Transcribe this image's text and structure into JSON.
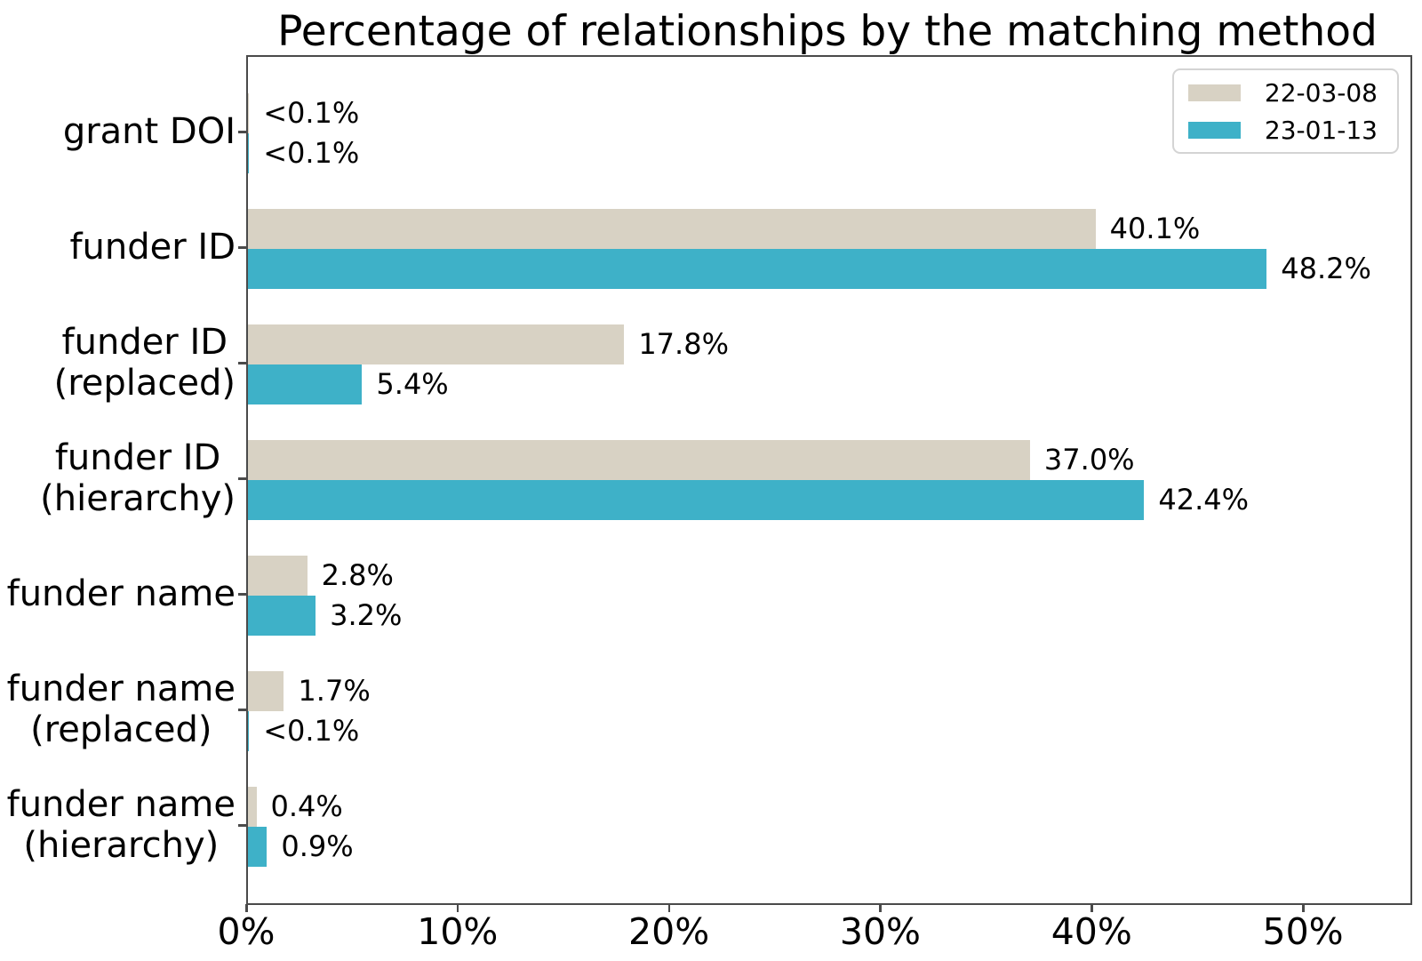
{
  "chart_data": {
    "type": "bar",
    "orientation": "horizontal",
    "title": "Percentage of relationships by the matching method",
    "categories": [
      {
        "lines": [
          "grant DOI"
        ]
      },
      {
        "lines": [
          "funder ID"
        ]
      },
      {
        "lines": [
          "funder ID",
          "(replaced)"
        ]
      },
      {
        "lines": [
          "funder ID",
          "(hierarchy)"
        ]
      },
      {
        "lines": [
          "funder name"
        ]
      },
      {
        "lines": [
          "funder name",
          "(replaced)"
        ]
      },
      {
        "lines": [
          "funder name",
          "(hierarchy)"
        ]
      }
    ],
    "series": [
      {
        "name": "22-03-08",
        "color": "#d8d2c4",
        "values": [
          0.05,
          40.1,
          17.8,
          37.0,
          2.8,
          1.7,
          0.4
        ],
        "value_labels": [
          "<0.1%",
          "40.1%",
          "17.8%",
          "37.0%",
          "2.8%",
          "1.7%",
          "0.4%"
        ]
      },
      {
        "name": "23-01-13",
        "color": "#3eb1c8",
        "values": [
          0.05,
          48.2,
          5.4,
          42.4,
          3.2,
          0.05,
          0.9
        ],
        "value_labels": [
          "<0.1%",
          "48.2%",
          "5.4%",
          "42.4%",
          "3.2%",
          "<0.1%",
          "0.9%"
        ]
      }
    ],
    "xlim": [
      0,
      55
    ],
    "x_ticks": [
      {
        "value": 0,
        "label": "0%"
      },
      {
        "value": 10,
        "label": "10%"
      },
      {
        "value": 20,
        "label": "20%"
      },
      {
        "value": 30,
        "label": "30%"
      },
      {
        "value": 40,
        "label": "40%"
      },
      {
        "value": 50,
        "label": "50%"
      }
    ],
    "legend": {
      "position": "upper-right",
      "entries": [
        "22-03-08",
        "23-01-13"
      ]
    },
    "grid": false
  }
}
